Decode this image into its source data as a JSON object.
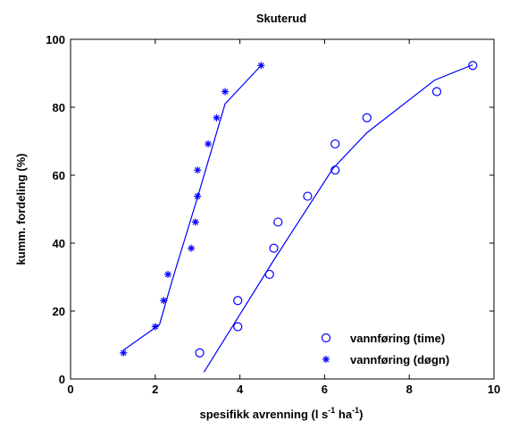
{
  "chart_data": {
    "type": "scatter",
    "title": "Skuterud",
    "xlabel": "spesifikk avrenning (l s",
    "xlabel_exp1": "-1",
    "xlabel_mid": " ha",
    "xlabel_exp2": "-1",
    "xlabel_end": ")",
    "ylabel": "kumm. fordeling (%)",
    "xlim": [
      0,
      10
    ],
    "ylim": [
      0,
      100
    ],
    "xticks": [
      0,
      2,
      4,
      6,
      8,
      10
    ],
    "yticks": [
      0,
      20,
      40,
      60,
      80,
      100
    ],
    "grid": false,
    "legend_position": "bottom-right",
    "colors": {
      "series": "#0000ff",
      "axis": "#000000"
    },
    "series": [
      {
        "name": "vannføring (time)",
        "marker": "circle",
        "points": [
          [
            3.05,
            7.7
          ],
          [
            3.95,
            15.4
          ],
          [
            3.95,
            23.1
          ],
          [
            4.7,
            30.8
          ],
          [
            4.8,
            38.5
          ],
          [
            4.9,
            46.2
          ],
          [
            5.6,
            53.8
          ],
          [
            6.25,
            61.5
          ],
          [
            6.25,
            69.2
          ],
          [
            7.0,
            76.9
          ],
          [
            8.65,
            84.6
          ],
          [
            9.5,
            92.3
          ]
        ],
        "fit": [
          [
            3.15,
            2.0
          ],
          [
            4.8,
            35.0
          ],
          [
            6.2,
            62.0
          ],
          [
            7.0,
            72.5
          ],
          [
            8.6,
            88.0
          ],
          [
            9.5,
            92.5
          ]
        ]
      },
      {
        "name": "vannføring (døgn)",
        "marker": "star",
        "points": [
          [
            1.25,
            7.7
          ],
          [
            2.0,
            15.4
          ],
          [
            2.2,
            23.1
          ],
          [
            2.3,
            30.8
          ],
          [
            2.85,
            38.5
          ],
          [
            2.95,
            46.2
          ],
          [
            3.0,
            53.8
          ],
          [
            3.0,
            61.5
          ],
          [
            3.25,
            69.2
          ],
          [
            3.45,
            76.9
          ],
          [
            3.65,
            84.6
          ],
          [
            4.5,
            92.3
          ]
        ],
        "fit": [
          [
            1.25,
            8.5
          ],
          [
            2.1,
            16.0
          ],
          [
            2.4,
            29.0
          ],
          [
            3.0,
            53.5
          ],
          [
            3.65,
            81.0
          ],
          [
            4.5,
            92.3
          ]
        ]
      }
    ]
  }
}
